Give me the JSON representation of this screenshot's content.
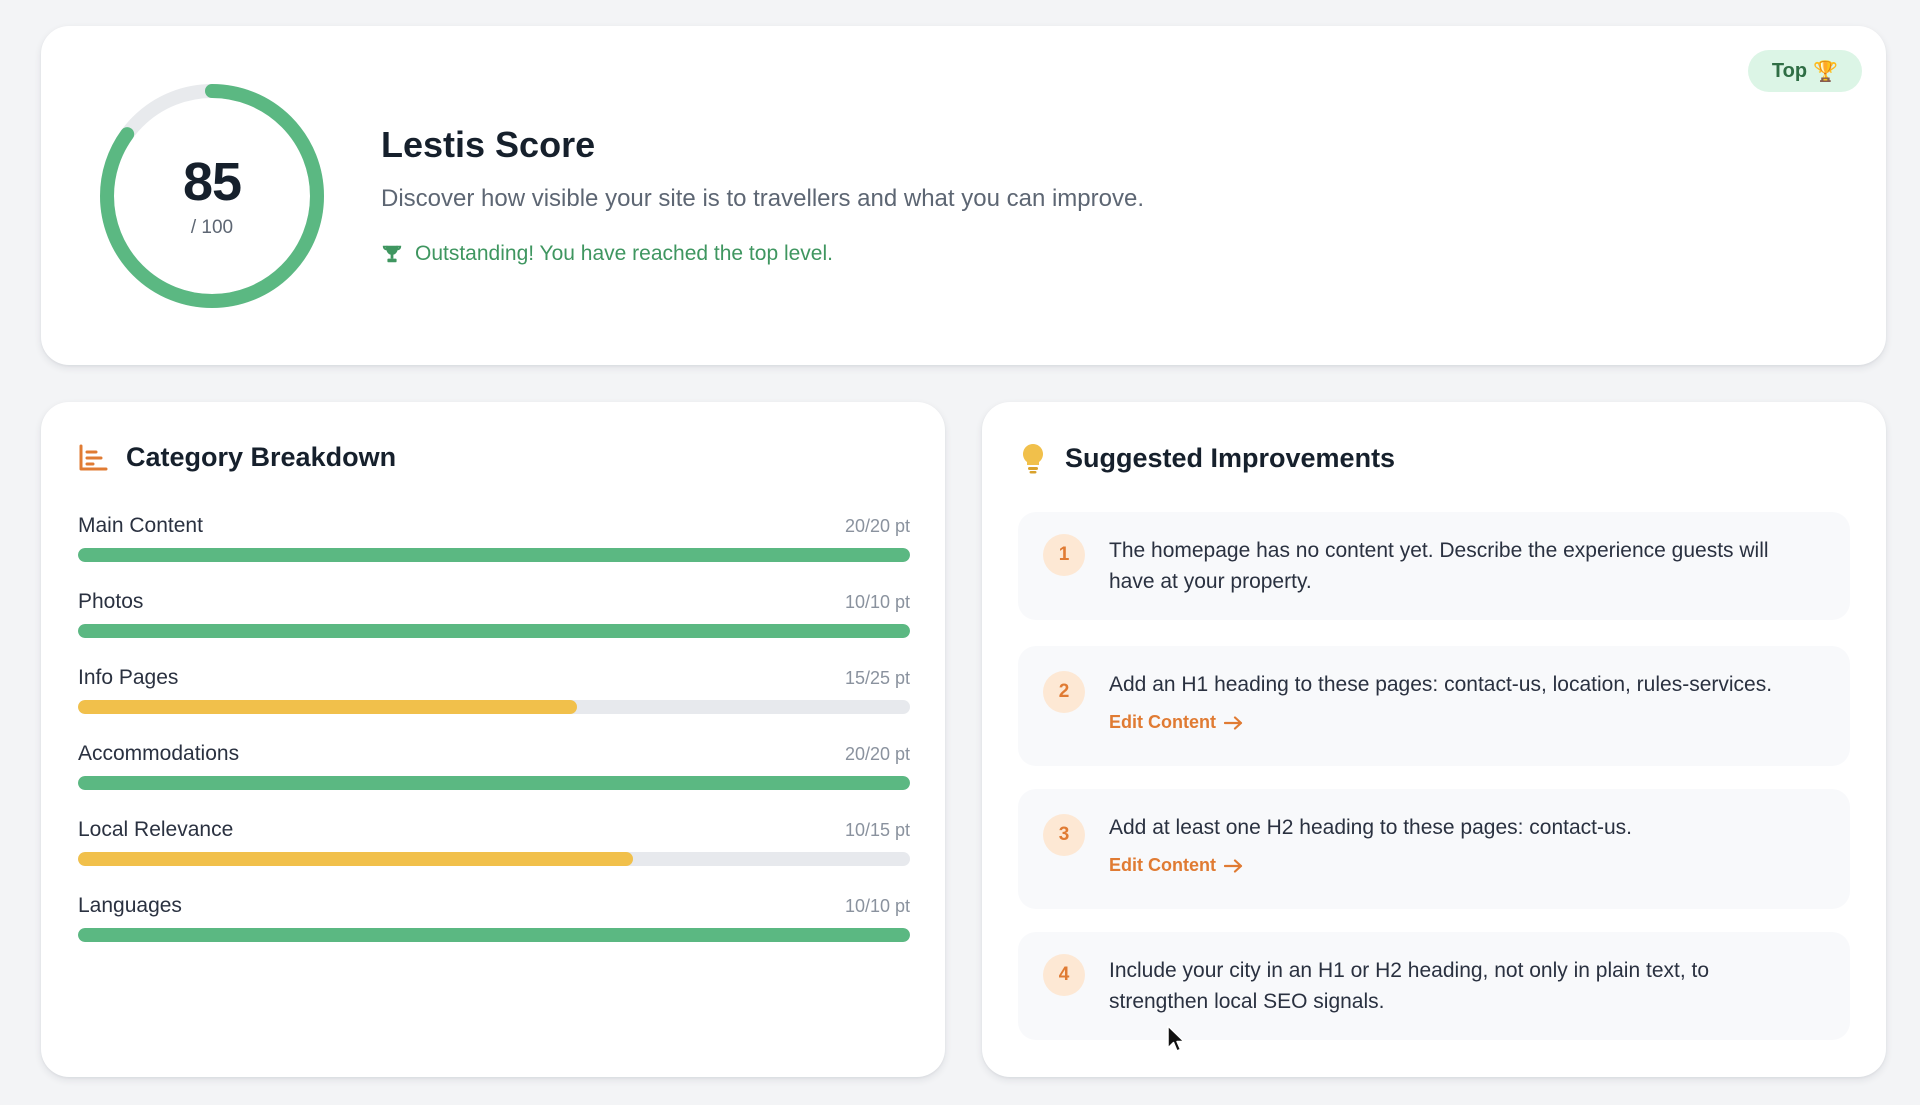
{
  "score": {
    "value": "85",
    "max_label": "/ 100",
    "fraction": 0.85,
    "title": "Lestis Score",
    "description": "Discover how visible your site is to travellers and what you can improve.",
    "status": "Outstanding! You have reached the top level.",
    "badge": "Top",
    "badge_emoji": "🏆"
  },
  "breakdown": {
    "title": "Category Breakdown",
    "icon": "bar-chart-icon",
    "items": [
      {
        "label": "Main Content",
        "points": "20/20 pt",
        "fraction": 1.0,
        "color": "#5bb882"
      },
      {
        "label": "Photos",
        "points": "10/10 pt",
        "fraction": 1.0,
        "color": "#5bb882"
      },
      {
        "label": "Info Pages",
        "points": "15/25 pt",
        "fraction": 0.6,
        "color": "#f1c04b"
      },
      {
        "label": "Accommodations",
        "points": "20/20 pt",
        "fraction": 1.0,
        "color": "#5bb882"
      },
      {
        "label": "Local Relevance",
        "points": "10/15 pt",
        "fraction": 0.667,
        "color": "#f1c04b"
      },
      {
        "label": "Languages",
        "points": "10/10 pt",
        "fraction": 1.0,
        "color": "#5bb882"
      }
    ]
  },
  "improvements": {
    "title": "Suggested Improvements",
    "icon": "lightbulb-icon",
    "items": [
      {
        "num": "1",
        "text": "The homepage has no content yet. Describe the experience guests will have at your property.",
        "link": ""
      },
      {
        "num": "2",
        "text": "Add an H1 heading to these pages: contact-us, location, rules-services.",
        "link": "Edit Content"
      },
      {
        "num": "3",
        "text": "Add at least one H2 heading to these pages: contact-us.",
        "link": "Edit Content"
      },
      {
        "num": "4",
        "text": "Include your city in an H1 or H2 heading, not only in plain text, to strengthen local SEO signals.",
        "link": ""
      }
    ]
  },
  "colors": {
    "accent_green": "#5bb882",
    "accent_yellow": "#f1c04b",
    "accent_orange": "#e07b33",
    "status_green": "#3f9660"
  }
}
